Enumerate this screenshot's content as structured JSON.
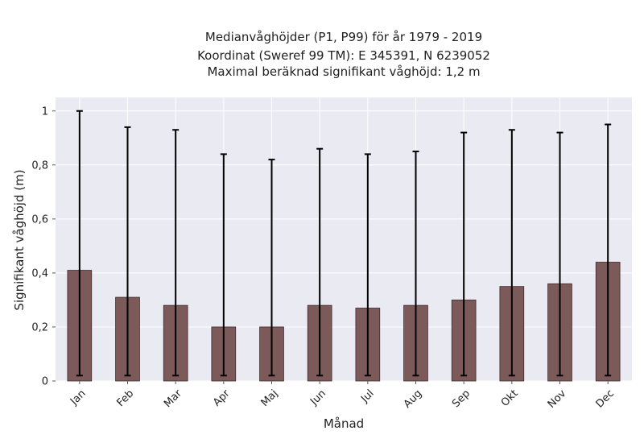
{
  "chart_data": {
    "type": "bar",
    "title_lines": [
      "Medianvåghöjder (P1, P99) för år 1979 - 2019",
      "Koordinat (Sweref 99 TM): E 345391, N 6239052",
      "Maximal beräknad signifikant våghöjd: 1,2 m"
    ],
    "xlabel": "Månad",
    "ylabel": "Signifikant våghöjd (m)",
    "categories": [
      "Jan",
      "Feb",
      "Mar",
      "Apr",
      "Maj",
      "Jun",
      "Jul",
      "Aug",
      "Sep",
      "Okt",
      "Nov",
      "Dec"
    ],
    "values": [
      0.41,
      0.31,
      0.28,
      0.2,
      0.2,
      0.28,
      0.27,
      0.28,
      0.3,
      0.35,
      0.36,
      0.44
    ],
    "error_low": [
      0.02,
      0.02,
      0.02,
      0.02,
      0.02,
      0.02,
      0.02,
      0.02,
      0.02,
      0.02,
      0.02,
      0.02
    ],
    "error_high": [
      1.0,
      0.94,
      0.93,
      0.84,
      0.82,
      0.86,
      0.84,
      0.85,
      0.92,
      0.93,
      0.92,
      0.95
    ],
    "ylim": [
      0,
      1.05
    ],
    "yticks": [
      0,
      0.2,
      0.4,
      0.6,
      0.8,
      1.0
    ],
    "ytick_labels": [
      "0",
      "0,2",
      "0,4",
      "0,6",
      "0,8",
      "1"
    ],
    "grid": true,
    "colors": {
      "bar": "#7d5a5a",
      "bar_edge": "#3d2a2a",
      "plot_bg": "#eaeaf2",
      "grid": "#ffffff",
      "error": "#000000"
    }
  }
}
